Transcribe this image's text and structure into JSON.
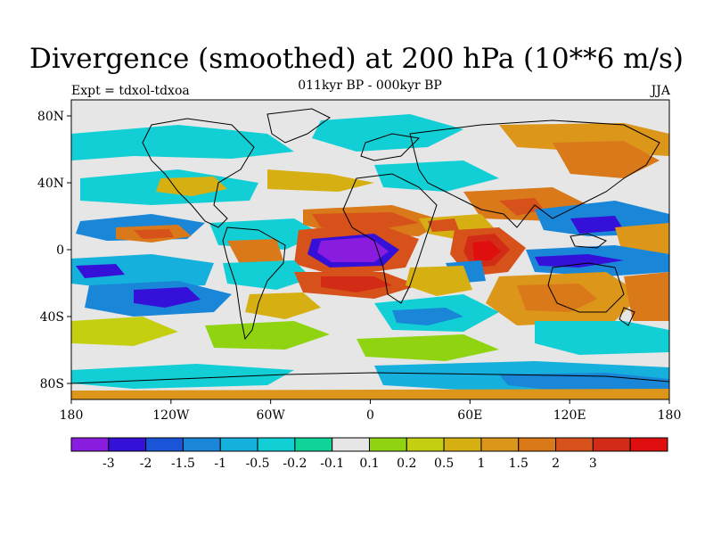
{
  "title": "Divergence (smoothed) at 200 hPa (10**6 m/s)",
  "subtitle": "011kyr BP - 000kyr BP",
  "experiment": "Expt = tdxol-tdxoa",
  "season": "JJA",
  "map": {
    "lat_labels": [
      "80N",
      "40N",
      "0",
      "40S",
      "80S"
    ],
    "lon_labels": [
      "180",
      "120W",
      "60W",
      "0",
      "60E",
      "120E",
      "180"
    ]
  },
  "colorbar": {
    "colors": [
      "#8a1ce0",
      "#3510d8",
      "#1a55d8",
      "#1a86d8",
      "#15b0dc",
      "#12cfd6",
      "#10d39a",
      "#e6e6e6",
      "#90d310",
      "#c4cf10",
      "#d6b012",
      "#dc961a",
      "#d9791a",
      "#d6521a",
      "#d22c16",
      "#e00f0f"
    ],
    "labels": [
      "-3",
      "-2",
      "-1.5",
      "-1",
      "-0.5",
      "-0.2",
      "-0.1",
      "0.1",
      "0.2",
      "0.5",
      "1",
      "1.5",
      "2",
      "3"
    ]
  }
}
